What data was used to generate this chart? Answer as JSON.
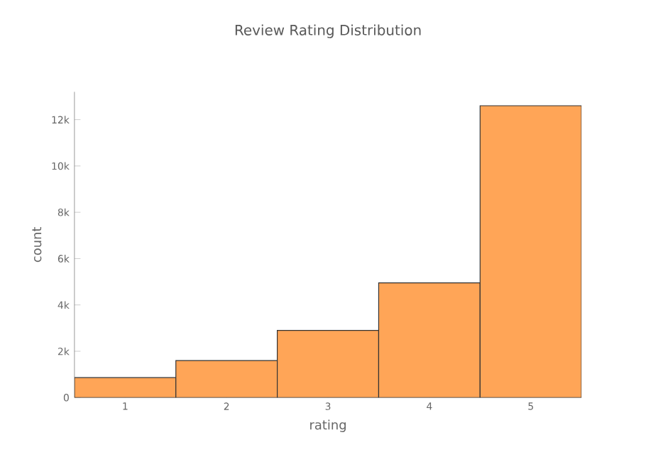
{
  "chart_data": {
    "type": "histogram",
    "title": "Review Rating Distribution",
    "xlabel": "rating",
    "ylabel": "count",
    "bins": [
      0.5,
      1.5,
      2.5,
      3.5,
      4.5,
      5.5
    ],
    "values": [
      860,
      1600,
      2900,
      4950,
      12600
    ],
    "color": "#ffa557",
    "xlim": [
      0.5,
      5.5
    ],
    "xticks": [
      1,
      2,
      3,
      4,
      5
    ],
    "ylim": [
      0,
      13200
    ],
    "yticks": [
      0,
      {
        "value": 2000,
        "label": "2k"
      },
      {
        "value": 4000,
        "label": "4k"
      },
      {
        "value": 6000,
        "label": "6k"
      },
      {
        "value": 8000,
        "label": "8k"
      },
      {
        "value": 10000,
        "label": "10k"
      },
      {
        "value": 12000,
        "label": "12k"
      }
    ],
    "marker": "none"
  }
}
